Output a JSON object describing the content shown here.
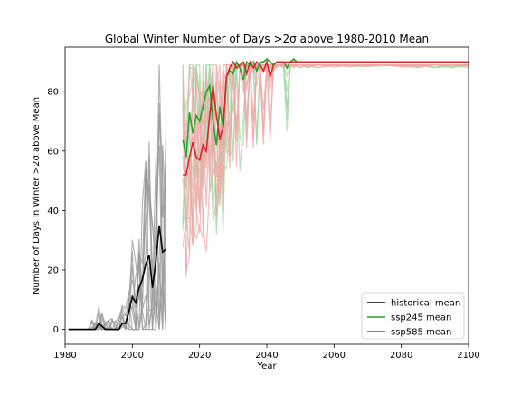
{
  "chart_data": {
    "type": "line",
    "title": "Global Winter Number of Days >2σ above 1980-2010 Mean",
    "xlabel": "Year",
    "ylabel": "Number of Days in Winter >2σ above Mean",
    "xlim": [
      1980,
      2100
    ],
    "ylim": [
      -5,
      95
    ],
    "xticks": [
      1980,
      2000,
      2020,
      2040,
      2060,
      2080,
      2100
    ],
    "yticks": [
      0,
      20,
      40,
      60,
      80
    ],
    "grid": false,
    "legend": "lower-right",
    "colors": {
      "historical": "#000000",
      "historical_members": "#999999",
      "ssp245": "#2ca02c",
      "ssp245_members": "#a7d8a7",
      "ssp585": "#d62728",
      "ssp585_members": "#f0a8a8"
    },
    "series": [
      {
        "name": "historical mean",
        "x": [
          1981,
          1982,
          1983,
          1984,
          1985,
          1986,
          1987,
          1988,
          1989,
          1990,
          1991,
          1992,
          1993,
          1994,
          1995,
          1996,
          1997,
          1998,
          1999,
          2000,
          2001,
          2002,
          2003,
          2004,
          2005,
          2006,
          2007,
          2008,
          2009,
          2010
        ],
        "values": [
          0,
          0,
          0,
          0,
          0,
          0,
          0,
          0,
          0,
          2,
          1,
          0,
          0,
          0,
          0,
          0,
          2,
          2,
          6,
          11,
          9,
          14,
          17,
          22,
          25,
          14,
          23,
          35,
          26,
          27
        ]
      },
      {
        "name": "ssp245 mean",
        "x": [
          2015,
          2016,
          2017,
          2018,
          2019,
          2020,
          2021,
          2022,
          2023,
          2024,
          2025,
          2026,
          2027,
          2028,
          2029,
          2030,
          2031,
          2032,
          2033,
          2034,
          2035,
          2036,
          2037,
          2038,
          2039,
          2040,
          2041,
          2042,
          2043,
          2044,
          2045,
          2046,
          2047,
          2048,
          2049,
          2050,
          2052,
          2055,
          2060,
          2065,
          2070,
          2075,
          2080,
          2085,
          2090,
          2095,
          2100
        ],
        "values": [
          64,
          58,
          73,
          66,
          72,
          70,
          75,
          80,
          82,
          70,
          62,
          75,
          68,
          85,
          87,
          86,
          90,
          88,
          84,
          90,
          89,
          90,
          87,
          90,
          90,
          91,
          90,
          89,
          90,
          90,
          90,
          88,
          90,
          91,
          90,
          90,
          90,
          90,
          90,
          90,
          90,
          90,
          90,
          90,
          90,
          90,
          90
        ]
      },
      {
        "name": "ssp585 mean",
        "x": [
          2015,
          2016,
          2017,
          2018,
          2019,
          2020,
          2021,
          2022,
          2023,
          2024,
          2025,
          2026,
          2027,
          2028,
          2029,
          2030,
          2031,
          2032,
          2033,
          2034,
          2035,
          2036,
          2037,
          2038,
          2039,
          2040,
          2041,
          2042,
          2043,
          2044,
          2045,
          2046,
          2047,
          2048,
          2049,
          2050,
          2052,
          2055,
          2060,
          2065,
          2070,
          2075,
          2080,
          2085,
          2090,
          2095,
          2100
        ],
        "values": [
          52,
          52,
          58,
          63,
          58,
          57,
          62,
          60,
          72,
          82,
          72,
          64,
          68,
          85,
          88,
          90,
          88,
          89,
          90,
          86,
          90,
          88,
          90,
          89,
          87,
          90,
          85,
          89,
          90,
          90,
          90,
          90,
          90,
          90,
          90,
          90,
          90,
          90,
          90,
          90,
          90,
          90,
          90,
          90,
          90,
          90,
          90
        ]
      }
    ]
  }
}
